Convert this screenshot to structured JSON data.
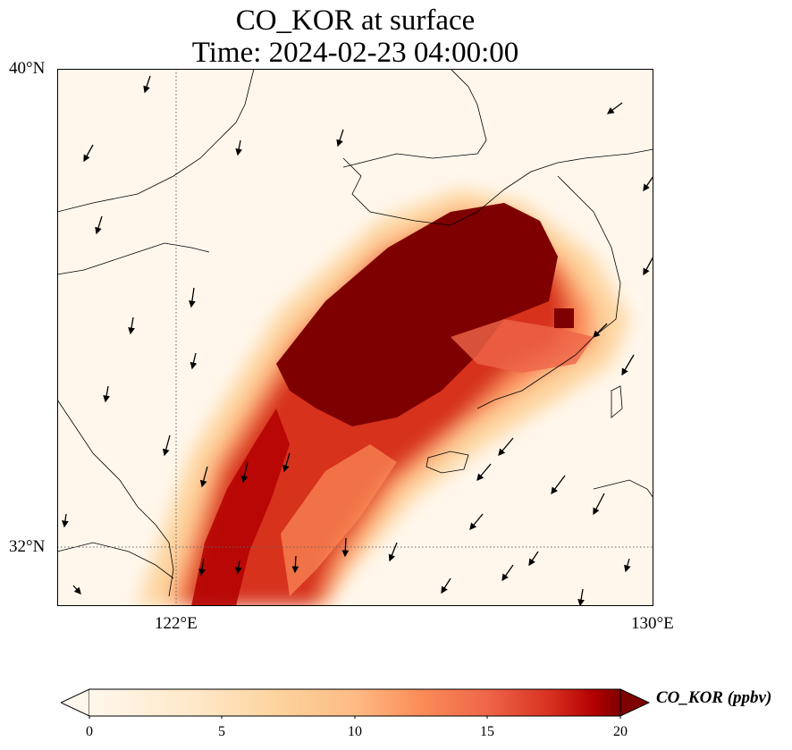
{
  "title": {
    "line1": "CO_KOR at surface",
    "line2": "Time: 2024-02-23 04:00:00"
  },
  "axes": {
    "lat_labels": [
      "40°N",
      "32°N"
    ],
    "lon_labels": [
      "122°E",
      "130°E"
    ],
    "lon_range": [
      120,
      130
    ],
    "lat_range": [
      31,
      40
    ]
  },
  "colorbar": {
    "label": "CO_KOR (ppbv)",
    "ticks": [
      "0",
      "5",
      "10",
      "15",
      "20"
    ],
    "range": [
      0,
      20
    ],
    "colormap": "OrRd",
    "extend": "both"
  },
  "colors": {
    "low": "#fff7ec",
    "mid_low": "#fdd49e",
    "mid": "#fc8d59",
    "high": "#d7301f",
    "max": "#7f0000"
  }
}
